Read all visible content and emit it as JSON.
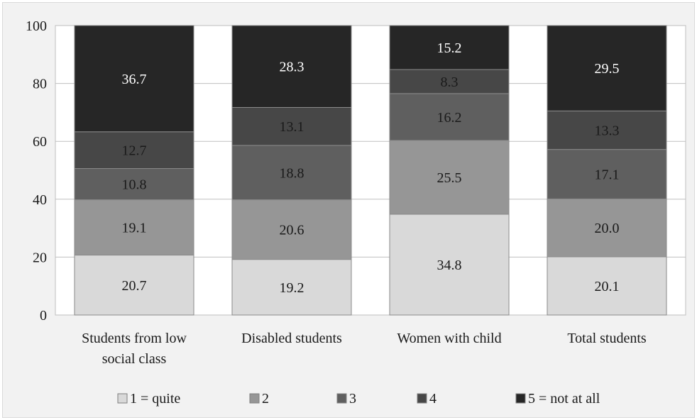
{
  "chart_data": {
    "type": "bar",
    "stacked": true,
    "categories": [
      [
        "Students from low",
        "social class"
      ],
      [
        "Disabled students"
      ],
      [
        "Women with child"
      ],
      [
        "Total students"
      ]
    ],
    "series": [
      {
        "name": "1 = quite",
        "values": [
          20.7,
          19.2,
          34.8,
          20.1
        ],
        "color": "#d9d9d9",
        "label_color": "#1a1a1a"
      },
      {
        "name": "2",
        "values": [
          19.1,
          20.6,
          25.5,
          20.0
        ],
        "color": "#969696",
        "label_color": "#1a1a1a"
      },
      {
        "name": "3",
        "values": [
          10.8,
          18.8,
          16.2,
          17.1
        ],
        "color": "#5f5f5f",
        "label_color": "#1a1a1a"
      },
      {
        "name": "4",
        "values": [
          12.7,
          13.1,
          8.3,
          13.3
        ],
        "color": "#474747",
        "label_color": "#1a1a1a"
      },
      {
        "name": "5 = not at all",
        "values": [
          36.7,
          28.3,
          15.2,
          29.5
        ],
        "color": "#262626",
        "label_color": "#ffffff"
      }
    ],
    "value_labels": [
      [
        "20.7",
        "19.2",
        "34.8",
        "20.1"
      ],
      [
        "19.1",
        "20.6",
        "25.5",
        "20.0"
      ],
      [
        "10.8",
        "18.8",
        "16.2",
        "17.1"
      ],
      [
        "12.7",
        "13.1",
        "8.3",
        "13.3"
      ],
      [
        "36.7",
        "28.3",
        "15.2",
        "29.5"
      ]
    ],
    "ylim": [
      0,
      100
    ],
    "yticks": [
      0,
      20,
      40,
      60,
      80,
      100
    ],
    "title": "",
    "xlabel": "",
    "ylabel": "",
    "grid": true,
    "legend": "bottom"
  }
}
